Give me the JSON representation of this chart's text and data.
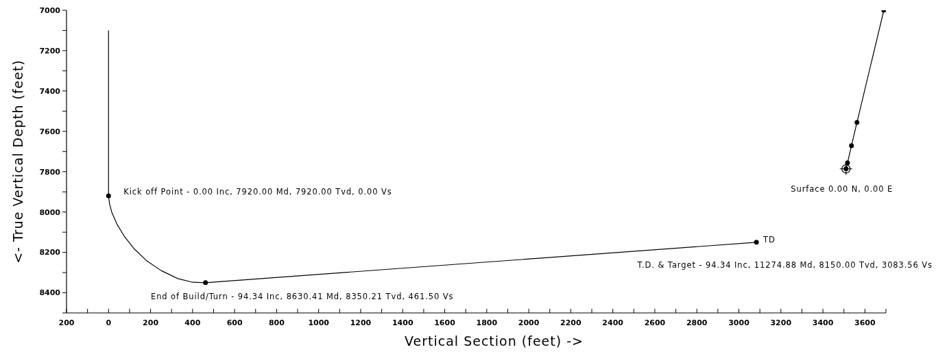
{
  "chart_data": {
    "type": "line",
    "xlabel": "Vertical Section (feet) ->",
    "ylabel": "<- True Vertical Depth (feet)",
    "xlim": [
      -200,
      3700
    ],
    "ylim": [
      8500,
      7000
    ],
    "xticks": [
      {
        "value": -200,
        "label": "200"
      },
      {
        "value": -100,
        "label": null
      },
      0,
      {
        "value": 100,
        "label": null
      },
      200,
      {
        "value": 300,
        "label": null
      },
      400,
      {
        "value": 500,
        "label": null
      },
      600,
      {
        "value": 700,
        "label": null
      },
      800,
      {
        "value": 900,
        "label": null
      },
      1000,
      {
        "value": 1100,
        "label": null
      },
      1200,
      {
        "value": 1300,
        "label": null
      },
      1400,
      {
        "value": 1500,
        "label": null
      },
      1600,
      {
        "value": 1700,
        "label": null
      },
      1800,
      {
        "value": 1900,
        "label": null
      },
      2000,
      {
        "value": 2100,
        "label": null
      },
      2200,
      {
        "value": 2300,
        "label": null
      },
      2400,
      {
        "value": 2500,
        "label": null
      },
      2600,
      {
        "value": 2700,
        "label": null
      },
      2800,
      {
        "value": 2900,
        "label": null
      },
      3000,
      {
        "value": 3100,
        "label": null
      },
      3200,
      {
        "value": 3300,
        "label": null
      },
      3400,
      {
        "value": 3500,
        "label": null
      },
      3600,
      {
        "value": 3700,
        "label": null
      }
    ],
    "yticks": [
      7000,
      {
        "value": 7100,
        "label": null
      },
      7200,
      {
        "value": 7300,
        "label": null
      },
      7400,
      {
        "value": 7500,
        "label": null
      },
      7600,
      {
        "value": 7700,
        "label": null
      },
      7800,
      {
        "value": 7900,
        "label": null
      },
      8000,
      {
        "value": 8100,
        "label": null
      },
      8200,
      {
        "value": 8300,
        "label": null
      },
      8400,
      {
        "value": 8500,
        "label": null
      }
    ],
    "grid": false,
    "series": [
      {
        "color": "#000000",
        "marker": "none",
        "x": [
          0,
          0,
          5,
          15,
          40,
          75,
          120,
          180,
          250,
          330,
          400,
          461.5,
          3083.56
        ],
        "values": [
          7100,
          7920,
          7960,
          8000,
          8060,
          8120,
          8180,
          8240,
          8290,
          8330,
          8348,
          8350,
          8150
        ]
      },
      {
        "type": "scatter",
        "color": "#000000",
        "marker": "circle",
        "x": [
          0,
          461.5,
          3083.56
        ],
        "values": [
          7920,
          8350,
          8150
        ]
      },
      {
        "color": "#000000",
        "marker": "circle",
        "x": [
          3510,
          3517,
          3536,
          3562,
          3690
        ],
        "values": [
          7786,
          7756,
          7671,
          7556,
          7000
        ]
      }
    ],
    "annotations": [
      {
        "text": "Kick off Point - 0.00 Inc, 7920.00 Md, 7920.00 Tvd, 0.00 Vs",
        "x": 0,
        "y": 7920
      },
      "End of Build/Turn - 94.34 Inc, 8630.41 Md, 8350.21 Tvd, 461.50 Vs",
      {
        "text": "TD",
        "x": 3083.56,
        "y": 8150
      },
      "T.D. & Target - 94.34 Inc, 11274.88 Md, 8150.00 Tvd, 3083.56 Vs",
      {
        "text": "Surface 0.00 N, 0.00 E",
        "x": 3510,
        "y": 7786
      }
    ]
  }
}
